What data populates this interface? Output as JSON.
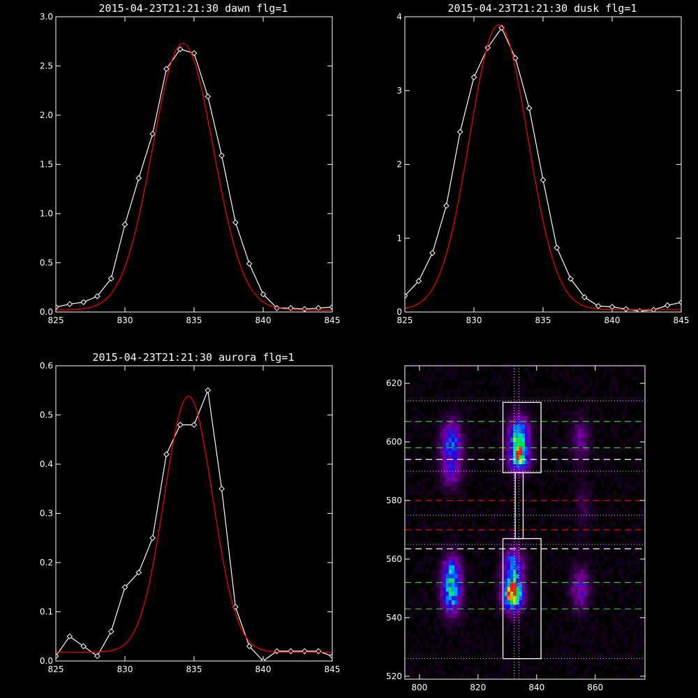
{
  "chart_data": [
    {
      "type": "line",
      "title": "2015-04-23T21:21:30 dawn flg=1",
      "xlim": [
        825,
        845
      ],
      "ylim": [
        0,
        3.0
      ],
      "xticks": [
        "825",
        "830",
        "835",
        "840",
        "845"
      ],
      "yticks": [
        "0.0",
        "0.5",
        "1.0",
        "1.5",
        "2.0",
        "2.5",
        "3.0"
      ],
      "series": [
        {
          "color": "#ffffff",
          "markers": "diamond",
          "x": [
            825,
            826,
            827,
            828,
            829,
            830,
            831,
            832,
            833,
            834,
            835,
            836,
            837,
            838,
            839,
            840,
            841,
            842,
            843,
            844,
            845
          ],
          "y": [
            0.05,
            0.08,
            0.1,
            0.16,
            0.34,
            0.89,
            1.36,
            1.81,
            2.47,
            2.67,
            2.63,
            2.19,
            1.59,
            0.91,
            0.49,
            0.18,
            0.04,
            0.04,
            0.03,
            0.04,
            0.05
          ]
        },
        {
          "color": "#ff0000",
          "gaussian": {
            "amp": 2.71,
            "center": 834.2,
            "sigma": 2.2,
            "base": 0.02
          }
        }
      ]
    },
    {
      "type": "line",
      "title": "2015-04-23T21:21:30 dusk flg=1",
      "xlim": [
        825,
        845
      ],
      "ylim": [
        0,
        4
      ],
      "xticks": [
        "825",
        "830",
        "835",
        "840",
        "845"
      ],
      "yticks": [
        "0",
        "1",
        "2",
        "3",
        "4"
      ],
      "series": [
        {
          "color": "#ffffff",
          "markers": "diamond",
          "x": [
            825,
            826,
            827,
            828,
            829,
            830,
            831,
            832,
            833,
            834,
            835,
            836,
            837,
            838,
            839,
            840,
            841,
            842,
            843,
            844,
            845
          ],
          "y": [
            0.22,
            0.42,
            0.8,
            1.44,
            2.44,
            3.18,
            3.58,
            3.85,
            3.44,
            2.76,
            1.79,
            0.87,
            0.45,
            0.2,
            0.08,
            0.07,
            0.04,
            0.01,
            0.03,
            0.09,
            0.13
          ]
        },
        {
          "color": "#ff0000",
          "gaussian": {
            "amp": 3.86,
            "center": 831.8,
            "sigma": 2.1,
            "base": 0.03
          }
        }
      ]
    },
    {
      "type": "line",
      "title": "2015-04-23T21:21:30 aurora flg=1",
      "xlim": [
        825,
        845
      ],
      "ylim": [
        0,
        0.6
      ],
      "xticks": [
        "825",
        "830",
        "835",
        "840",
        "845"
      ],
      "yticks": [
        "0.0",
        "0.1",
        "0.2",
        "0.3",
        "0.4",
        "0.5",
        "0.6"
      ],
      "series": [
        {
          "color": "#ffffff",
          "markers": "diamond",
          "x": [
            825,
            826,
            827,
            828,
            829,
            830,
            831,
            832,
            833,
            834,
            835,
            836,
            837,
            838,
            839,
            840,
            841,
            842,
            843,
            844,
            845
          ],
          "y": [
            0.01,
            0.05,
            0.03,
            0.01,
            0.06,
            0.15,
            0.18,
            0.25,
            0.42,
            0.48,
            0.48,
            0.55,
            0.35,
            0.11,
            0.03,
            0.0,
            0.02,
            0.02,
            0.02,
            0.02,
            0.01
          ]
        },
        {
          "color": "#ff0000",
          "gaussian": {
            "amp": 0.52,
            "center": 834.6,
            "sigma": 1.75,
            "base": 0.018
          }
        }
      ]
    },
    {
      "type": "heatmap",
      "xlim": [
        795,
        877
      ],
      "ylim": [
        519,
        626
      ],
      "xticks": [
        "800",
        "820",
        "840",
        "860"
      ],
      "yticks": [
        "520",
        "540",
        "560",
        "580",
        "600",
        "620"
      ],
      "blobs": [
        {
          "x": 811,
          "y": 548,
          "sx": 2.3,
          "sy": 5,
          "amp": 0.6
        },
        {
          "x": 811,
          "y": 556,
          "sx": 2.3,
          "sy": 4,
          "amp": 0.45
        },
        {
          "x": 811,
          "y": 600,
          "sx": 2.5,
          "sy": 5,
          "amp": 0.5
        },
        {
          "x": 811,
          "y": 590,
          "sx": 2.5,
          "sy": 4,
          "amp": 0.3
        },
        {
          "x": 832,
          "y": 548,
          "sx": 2.4,
          "sy": 4,
          "amp": 1.0
        },
        {
          "x": 832,
          "y": 558,
          "sx": 2.4,
          "sy": 4,
          "amp": 0.55
        },
        {
          "x": 834,
          "y": 601,
          "sx": 2.4,
          "sy": 5,
          "amp": 0.8
        },
        {
          "x": 834,
          "y": 594,
          "sx": 2.4,
          "sy": 3,
          "amp": 0.55
        },
        {
          "x": 855,
          "y": 550,
          "sx": 2.2,
          "sy": 5,
          "amp": 0.35
        },
        {
          "x": 855,
          "y": 601,
          "sx": 2.2,
          "sy": 5,
          "amp": 0.25
        },
        {
          "x": 856,
          "y": 578,
          "sx": 2.0,
          "sy": 6,
          "amp": 0.12
        }
      ],
      "dotted_vlines_x": [
        832.3,
        834.0
      ],
      "dotted_hlines_y": [
        614,
        590,
        575,
        565,
        526
      ],
      "dashed_hlines": [
        {
          "y": 607,
          "color": "#33cc33"
        },
        {
          "y": 598,
          "color": "#33cc33"
        },
        {
          "y": 594,
          "color": "#ffffff"
        },
        {
          "y": 580,
          "color": "#dd1111"
        },
        {
          "y": 570,
          "color": "#dd1111"
        },
        {
          "y": 563.5,
          "color": "#ffffff"
        },
        {
          "y": 552,
          "color": "#33cc33"
        },
        {
          "y": 543,
          "color": "#33cc33"
        }
      ],
      "box_color": "#ffffff",
      "boxes": [
        {
          "x0": 828.5,
          "x1": 841.5,
          "y0": 589.5,
          "y1": 613.5
        },
        {
          "x0": 828.5,
          "x1": 841.5,
          "y0": 526,
          "y1": 567
        },
        {
          "x0": 832.7,
          "x1": 835.4,
          "y0": 567,
          "y1": 589.5
        }
      ]
    }
  ]
}
